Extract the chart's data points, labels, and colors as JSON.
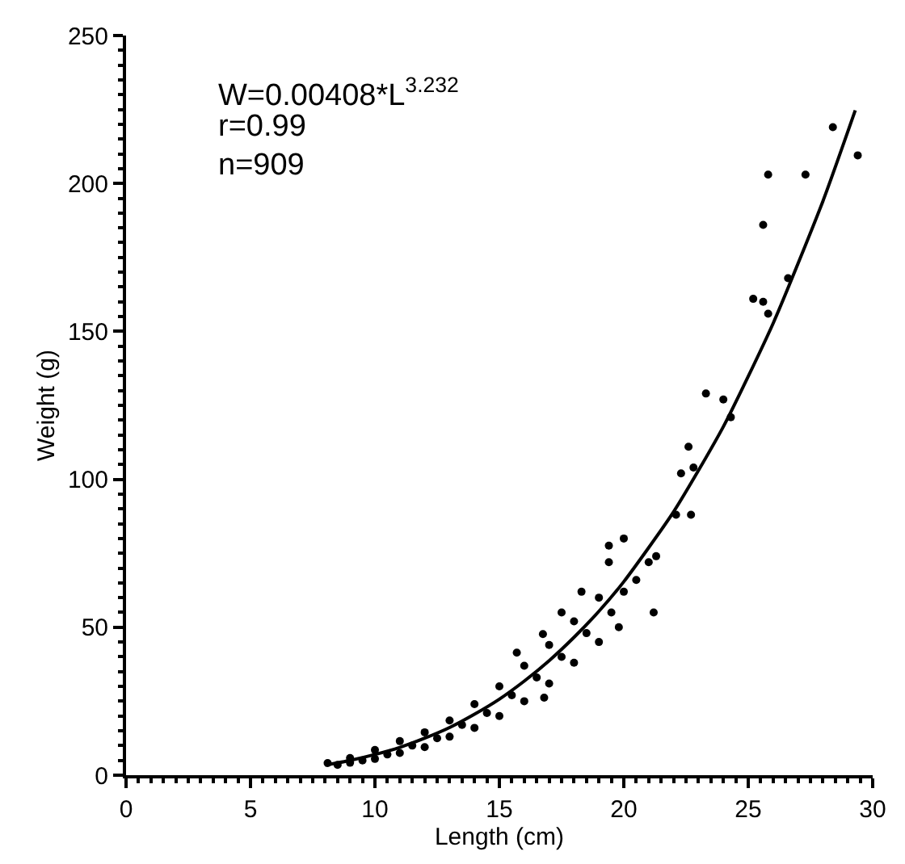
{
  "chart_data": {
    "type": "scatter",
    "xlabel": "Length (cm)",
    "ylabel": "Weight (g)",
    "xlim": [
      0,
      30
    ],
    "xticks": [
      0,
      5,
      10,
      15,
      20,
      25,
      30
    ],
    "ylim": [
      0,
      250
    ],
    "yticks": [
      0,
      50,
      100,
      150,
      200,
      250
    ],
    "grid": false,
    "marker": "circle",
    "annotations": [
      "W=0.00408*L$^{3.232}$",
      "r=0.99",
      "n=909"
    ],
    "series": [
      {
        "color": "#000000",
        "x": [
          8.1,
          8.5,
          9,
          9,
          9.5,
          10,
          10,
          10.5,
          11,
          11,
          11.5,
          12,
          12,
          12.5,
          13,
          13,
          13.5,
          14,
          14,
          14.5,
          15,
          15,
          15.5,
          15.7,
          16,
          16,
          16.5,
          16.75,
          16.8,
          17,
          17,
          17.5,
          17.5,
          18,
          18,
          18.3,
          18.5,
          19,
          19,
          19.4,
          19.4,
          19.5,
          19.8,
          20,
          20,
          20.5,
          21,
          21.2,
          21.3,
          22.1,
          22.3,
          22.6,
          22.7,
          22.8,
          23.3,
          24,
          24.3,
          25.2,
          25.6,
          25.6,
          25.8,
          25.8,
          26.6,
          27.3,
          28.4,
          29.4
        ],
        "values": [
          4.1,
          3.5,
          4.2,
          5.8,
          5,
          5.5,
          8.5,
          7,
          7.5,
          11.5,
          10,
          9.5,
          14.5,
          12.5,
          13,
          18.5,
          17,
          16,
          24,
          21,
          20,
          30,
          27,
          41.4,
          25,
          37,
          33,
          47.7,
          26.2,
          31,
          44,
          55,
          40,
          38,
          52,
          62,
          48,
          45,
          60,
          72,
          77.6,
          55,
          50,
          80,
          62,
          66,
          72,
          55,
          74,
          88,
          102,
          111,
          88,
          104,
          129,
          127,
          121,
          161,
          160,
          186,
          156,
          203,
          168,
          203,
          219,
          209.5
        ]
      },
      {
        "type": "line",
        "color": "#000000",
        "marker": "none",
        "line_style": "solid",
        "x": [
          8,
          9,
          10,
          11,
          12,
          13,
          14,
          15,
          16,
          17,
          18,
          19,
          20,
          22,
          24,
          26,
          28,
          29.3
        ],
        "values": [
          3.4,
          5.0,
          7.0,
          9.4,
          12.5,
          16.1,
          20.6,
          25.7,
          31.8,
          38.7,
          46.6,
          55.4,
          65.4,
          89,
          117.8,
          152.7,
          194,
          224.7
        ]
      }
    ]
  }
}
